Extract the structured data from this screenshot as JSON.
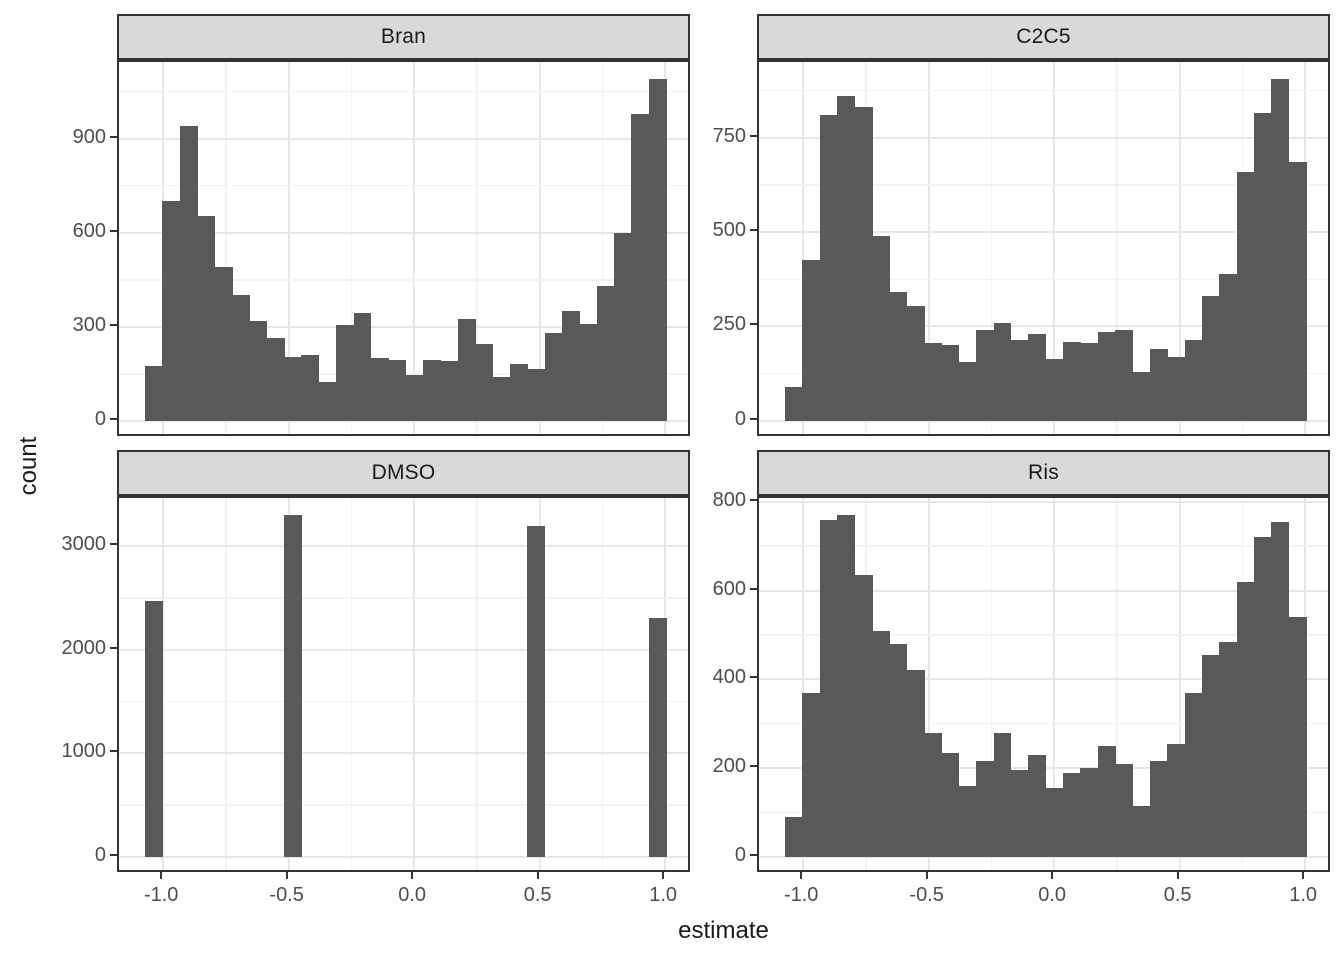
{
  "figure": {
    "x_axis_title": "estimate",
    "y_axis_title": "count"
  },
  "chart_data": {
    "type": "bar",
    "subtype": "faceted-histogram",
    "title": "",
    "xlabel": "estimate",
    "ylabel": "count",
    "grid": true,
    "legend": "none",
    "bar_color": "#595959",
    "strip_bg": "#D9D9D9",
    "x_tick_labels": [
      "-1.0",
      "-0.5",
      "0.0",
      "0.5",
      "1.0"
    ],
    "x_tick_values": [
      -1.0,
      -0.5,
      0.0,
      0.5,
      1.0
    ],
    "x_minor_values": [
      -0.75,
      -0.25,
      0.25,
      0.75
    ],
    "x_range": [
      -1.176,
      1.107
    ],
    "bins": {
      "start": -1.072,
      "width": 0.0692,
      "count": 30
    },
    "facets": [
      {
        "label": "Bran",
        "y_ticks": [
          0,
          300,
          600,
          900
        ],
        "values": [
          175,
          700,
          940,
          655,
          490,
          400,
          320,
          265,
          205,
          210,
          125,
          305,
          345,
          200,
          195,
          145,
          195,
          190,
          325,
          245,
          140,
          180,
          165,
          280,
          350,
          310,
          430,
          600,
          980,
          1090
        ]
      },
      {
        "label": "C2C5",
        "y_ticks": [
          0,
          250,
          500,
          750
        ],
        "values": [
          90,
          425,
          810,
          860,
          830,
          490,
          340,
          305,
          205,
          200,
          155,
          240,
          260,
          215,
          230,
          165,
          210,
          205,
          235,
          240,
          130,
          190,
          170,
          215,
          330,
          390,
          660,
          815,
          905,
          685
        ]
      },
      {
        "label": "DMSO",
        "y_ticks": [
          0,
          1000,
          2000,
          3000
        ],
        "values": [
          2470,
          0,
          0,
          0,
          0,
          0,
          0,
          0,
          3300,
          0,
          0,
          0,
          0,
          0,
          0,
          0,
          0,
          0,
          0,
          0,
          0,
          0,
          3190,
          0,
          0,
          0,
          0,
          0,
          0,
          2310
        ]
      },
      {
        "label": "Ris",
        "y_ticks": [
          0,
          200,
          400,
          600,
          800
        ],
        "values": [
          90,
          370,
          760,
          770,
          635,
          510,
          480,
          420,
          280,
          235,
          160,
          215,
          280,
          195,
          230,
          155,
          190,
          200,
          250,
          210,
          115,
          215,
          255,
          370,
          455,
          485,
          620,
          720,
          755,
          540
        ]
      }
    ]
  }
}
